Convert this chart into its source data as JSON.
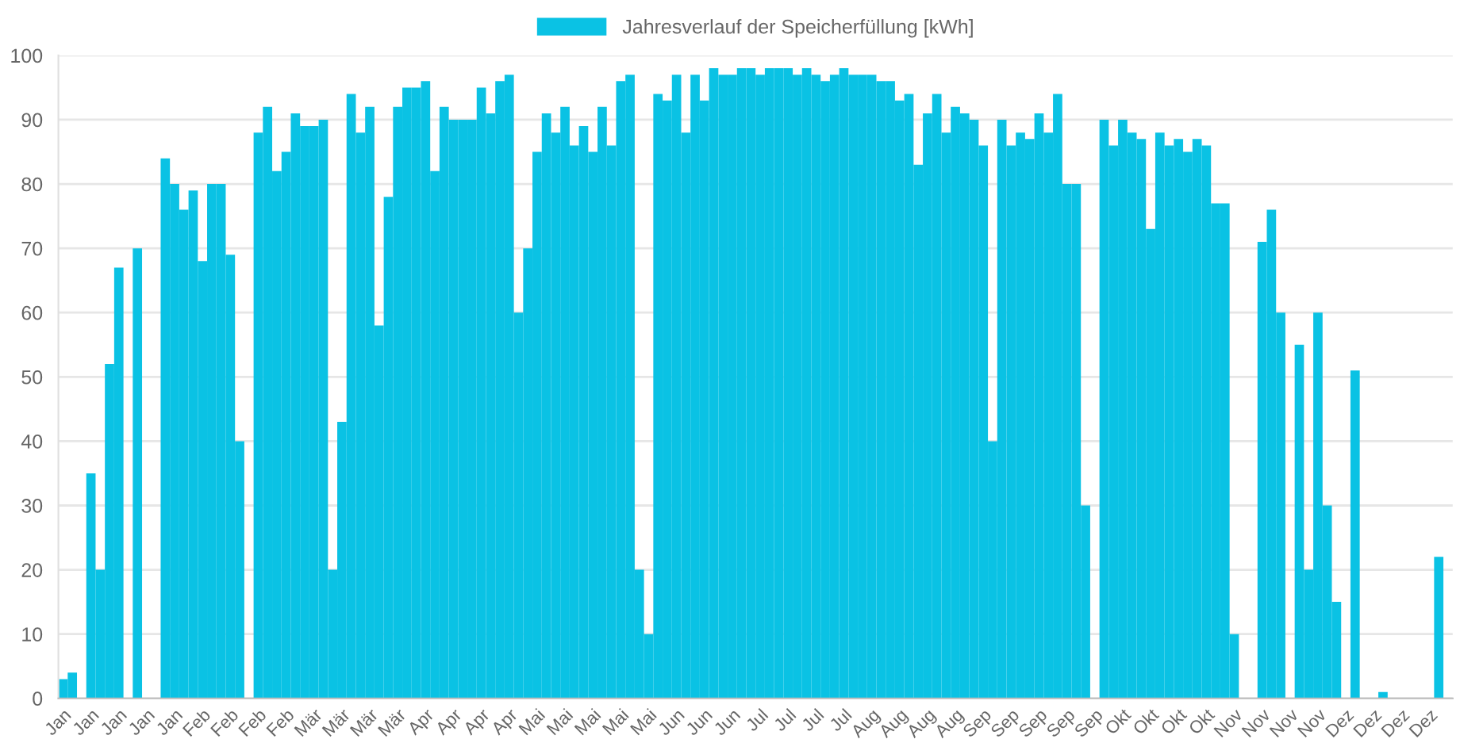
{
  "chart_data": {
    "type": "bar",
    "categories": [
      "Jan",
      null,
      null,
      "Jan",
      null,
      null,
      "Jan",
      null,
      null,
      "Jan",
      null,
      null,
      "Jan",
      null,
      null,
      "Feb",
      null,
      null,
      "Feb",
      null,
      null,
      "Feb",
      null,
      null,
      "Feb",
      null,
      null,
      "Mär",
      null,
      null,
      "Mär",
      null,
      null,
      "Mär",
      null,
      null,
      "Mär",
      null,
      null,
      "Apr",
      null,
      null,
      "Apr",
      null,
      null,
      "Apr",
      null,
      null,
      "Apr",
      null,
      null,
      "Mai",
      null,
      null,
      "Mai",
      null,
      null,
      "Mai",
      null,
      null,
      "Mai",
      null,
      null,
      "Mai",
      null,
      null,
      "Jun",
      null,
      null,
      "Jun",
      null,
      null,
      "Jun",
      null,
      null,
      "Jul",
      null,
      null,
      "Jul",
      null,
      null,
      "Jul",
      null,
      null,
      "Jul",
      null,
      null,
      "Aug",
      null,
      null,
      "Aug",
      null,
      null,
      "Aug",
      null,
      null,
      "Aug",
      null,
      null,
      "Sep",
      null,
      null,
      "Sep",
      null,
      null,
      "Sep",
      null,
      null,
      "Sep",
      null,
      null,
      "Sep",
      null,
      null,
      "Okt",
      null,
      null,
      "Okt",
      null,
      null,
      "Okt",
      null,
      null,
      "Okt",
      null,
      null,
      "Nov",
      null,
      null,
      "Nov",
      null,
      null,
      "Nov",
      null,
      null,
      "Nov",
      null,
      null,
      "Dez",
      null,
      null,
      "Dez",
      null,
      null,
      "Dez",
      null,
      null,
      "Dez",
      null,
      null
    ],
    "series": [
      {
        "name": "Jahresverlauf der Speicherfüllung [kWh]",
        "color": "#0ac2e4",
        "values": [
          3,
          4,
          0,
          35,
          20,
          52,
          67,
          0,
          70,
          0,
          0,
          84,
          80,
          76,
          79,
          68,
          80,
          80,
          69,
          40,
          0,
          88,
          92,
          82,
          85,
          91,
          89,
          89,
          90,
          20,
          43,
          94,
          88,
          92,
          58,
          78,
          92,
          95,
          95,
          96,
          82,
          92,
          90,
          90,
          90,
          95,
          91,
          96,
          97,
          60,
          70,
          85,
          91,
          88,
          92,
          86,
          89,
          85,
          92,
          86,
          96,
          97,
          20,
          10,
          94,
          93,
          97,
          88,
          97,
          93,
          98,
          97,
          97,
          98,
          98,
          97,
          98,
          98,
          98,
          97,
          98,
          97,
          96,
          97,
          98,
          97,
          97,
          97,
          96,
          96,
          93,
          94,
          83,
          91,
          94,
          88,
          92,
          91,
          90,
          86,
          40,
          90,
          86,
          88,
          87,
          91,
          88,
          94,
          80,
          80,
          30,
          0,
          90,
          86,
          90,
          88,
          87,
          73,
          88,
          86,
          87,
          85,
          87,
          86,
          77,
          77,
          10,
          0,
          0,
          71,
          76,
          60,
          0,
          55,
          20,
          60,
          30,
          15,
          0,
          51,
          0,
          0,
          1,
          0,
          0,
          0,
          0,
          0,
          22,
          0
        ]
      }
    ],
    "ylim": [
      0,
      100
    ],
    "yticks": [
      0,
      10,
      20,
      30,
      40,
      50,
      60,
      70,
      80,
      90,
      100
    ],
    "grid": "y",
    "legend": "top"
  }
}
